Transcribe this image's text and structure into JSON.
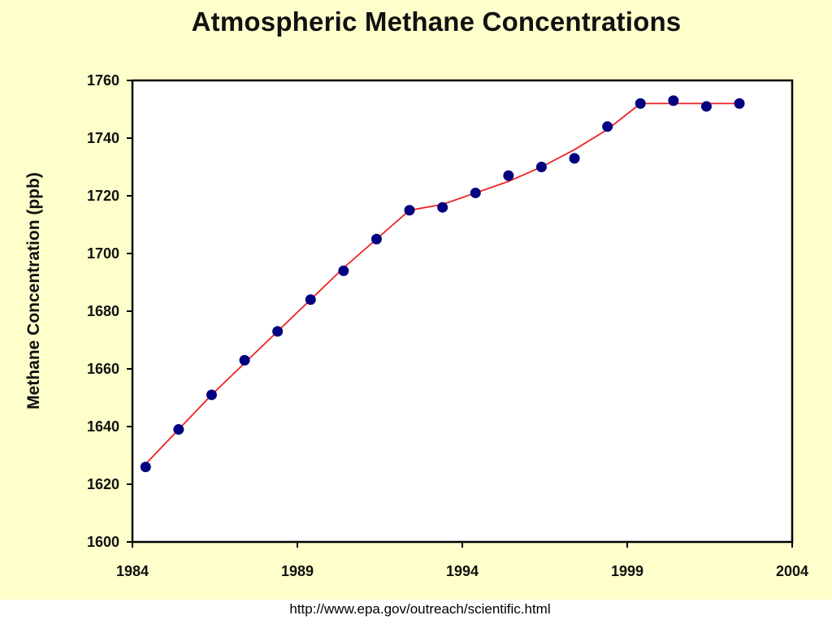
{
  "chart_data": {
    "type": "scatter",
    "title": "Atmospheric Methane Concentrations",
    "xlabel": "",
    "ylabel": "Methane Concentration (ppb)",
    "xlim": [
      1984,
      2004
    ],
    "ylim": [
      1600,
      1760
    ],
    "xticks": [
      1984,
      1989,
      1994,
      1999,
      2004
    ],
    "yticks": [
      1600,
      1620,
      1640,
      1660,
      1680,
      1700,
      1720,
      1740,
      1760
    ],
    "grid": false,
    "series": [
      {
        "kind": "points",
        "color": "#000080",
        "x": [
          1984.4,
          1985.4,
          1986.4,
          1987.4,
          1988.4,
          1989.4,
          1990.4,
          1991.4,
          1992.4,
          1993.4,
          1994.4,
          1995.4,
          1996.4,
          1997.4,
          1998.4,
          1999.4,
          2000.4,
          2001.4,
          2002.4
        ],
        "y": [
          1626,
          1639,
          1651,
          1663,
          1673,
          1684,
          1694,
          1705,
          1715,
          1716,
          1721,
          1727,
          1730,
          1733,
          1744,
          1752,
          1753,
          1751,
          1752
        ]
      },
      {
        "kind": "trend-line",
        "color": "#ee2222",
        "x": [
          1984.4,
          1985.4,
          1986.4,
          1987.4,
          1988.4,
          1989.4,
          1990.4,
          1991.4,
          1992.4,
          1993.4,
          1994.4,
          1995.4,
          1996.4,
          1997.4,
          1998.4,
          1999.4,
          2000.4,
          2001.4,
          2002.4
        ],
        "y": [
          1627,
          1639,
          1651,
          1662,
          1673,
          1684,
          1695,
          1705,
          1715,
          1717,
          1721,
          1725,
          1730,
          1736,
          1743,
          1752,
          1752,
          1752,
          1752
        ]
      }
    ]
  },
  "source_caption": "http://www.epa.gov/outreach/scientific.html",
  "colors": {
    "slide_background": "#ffffcc",
    "plot_background": "#ffffff",
    "axis": "#000000"
  }
}
